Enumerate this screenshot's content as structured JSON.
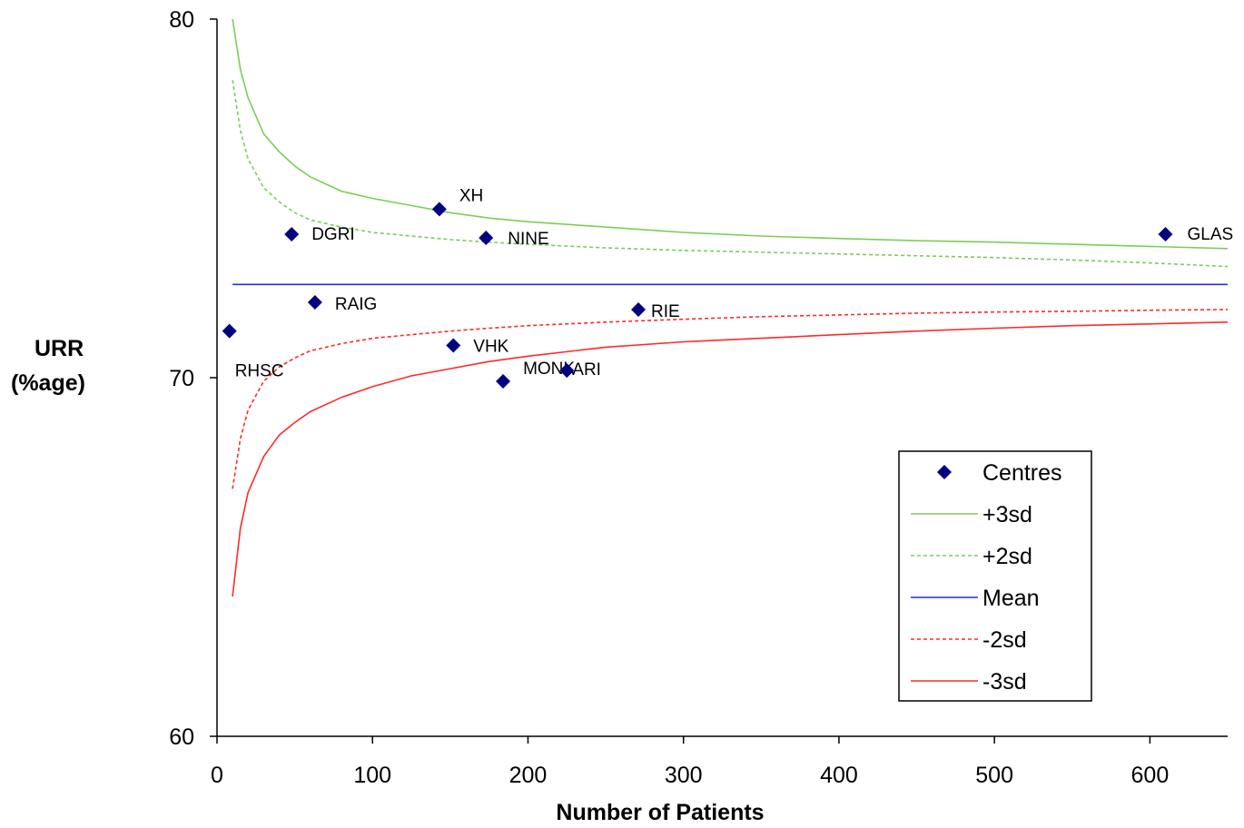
{
  "chart_data": {
    "type": "scatter",
    "title": "",
    "xlabel": "Number of Patients",
    "ylabel_lines": [
      "URR",
      "(%age)"
    ],
    "xlim": [
      0,
      650
    ],
    "ylim": [
      60,
      80
    ],
    "x_ticks": [
      0,
      100,
      200,
      300,
      400,
      500,
      600
    ],
    "y_ticks": [
      60,
      70,
      80
    ],
    "grid": false,
    "legend_position": "bottom-right",
    "colors": {
      "centres": "#000080",
      "plus3sd": "#7ccd59",
      "plus2sd": "#7ccd59",
      "mean": "#2a2ae6",
      "minus2sd": "#ff2a2a",
      "minus3sd": "#ff2a2a"
    },
    "points": [
      {
        "label": "RHSC",
        "x": 8,
        "y": 71.3
      },
      {
        "label": "DGRI",
        "x": 48,
        "y": 74.0
      },
      {
        "label": "RAIG",
        "x": 63,
        "y": 72.1
      },
      {
        "label": "XH",
        "x": 143,
        "y": 74.7
      },
      {
        "label": "VHK",
        "x": 152,
        "y": 70.9
      },
      {
        "label": "NINE",
        "x": 173,
        "y": 73.9
      },
      {
        "label": "MONK",
        "x": 184,
        "y": 69.9
      },
      {
        "label": "ARI",
        "x": 225,
        "y": 70.2
      },
      {
        "label": "RIE",
        "x": 271,
        "y": 71.9
      },
      {
        "label": "GLAS",
        "x": 610,
        "y": 74.0
      }
    ],
    "series": [
      {
        "name": "+3sd",
        "x": [
          10,
          15,
          20,
          30,
          40,
          50,
          60,
          80,
          100,
          125,
          150,
          175,
          200,
          250,
          300,
          350,
          400,
          450,
          500,
          550,
          600,
          650
        ],
        "y": [
          80.0,
          78.6,
          77.8,
          76.8,
          76.3,
          75.9,
          75.6,
          75.2,
          75.0,
          74.8,
          74.6,
          74.45,
          74.35,
          74.2,
          74.05,
          73.95,
          73.88,
          73.82,
          73.78,
          73.72,
          73.66,
          73.6
        ]
      },
      {
        "name": "+2sd",
        "x": [
          10,
          15,
          20,
          30,
          40,
          50,
          60,
          80,
          100,
          125,
          150,
          175,
          200,
          250,
          300,
          350,
          400,
          450,
          500,
          550,
          600,
          650
        ],
        "y": [
          78.3,
          76.9,
          76.1,
          75.3,
          74.9,
          74.6,
          74.4,
          74.2,
          74.05,
          73.95,
          73.85,
          73.78,
          73.72,
          73.62,
          73.55,
          73.5,
          73.45,
          73.4,
          73.35,
          73.28,
          73.2,
          73.1
        ]
      },
      {
        "name": "Mean",
        "x": [
          10,
          650
        ],
        "y": [
          72.6,
          72.6
        ]
      },
      {
        "name": "-2sd",
        "x": [
          10,
          15,
          20,
          30,
          40,
          50,
          60,
          80,
          100,
          125,
          150,
          175,
          200,
          250,
          300,
          350,
          400,
          450,
          500,
          550,
          600,
          650
        ],
        "y": [
          66.9,
          68.3,
          69.1,
          69.9,
          70.3,
          70.55,
          70.75,
          70.95,
          71.1,
          71.2,
          71.3,
          71.38,
          71.45,
          71.55,
          71.63,
          71.7,
          71.75,
          71.8,
          71.83,
          71.85,
          71.88,
          71.9
        ]
      },
      {
        "name": "-3sd",
        "x": [
          10,
          15,
          20,
          30,
          40,
          50,
          60,
          80,
          100,
          125,
          150,
          175,
          200,
          250,
          300,
          350,
          400,
          450,
          500,
          550,
          600,
          650
        ],
        "y": [
          63.9,
          65.8,
          66.8,
          67.8,
          68.4,
          68.75,
          69.05,
          69.45,
          69.75,
          70.05,
          70.25,
          70.45,
          70.6,
          70.85,
          71.0,
          71.1,
          71.2,
          71.3,
          71.38,
          71.45,
          71.5,
          71.55
        ]
      }
    ],
    "legend": [
      "Centres",
      "+3sd",
      "+2sd",
      "Mean",
      "-2sd",
      "-3sd"
    ]
  }
}
